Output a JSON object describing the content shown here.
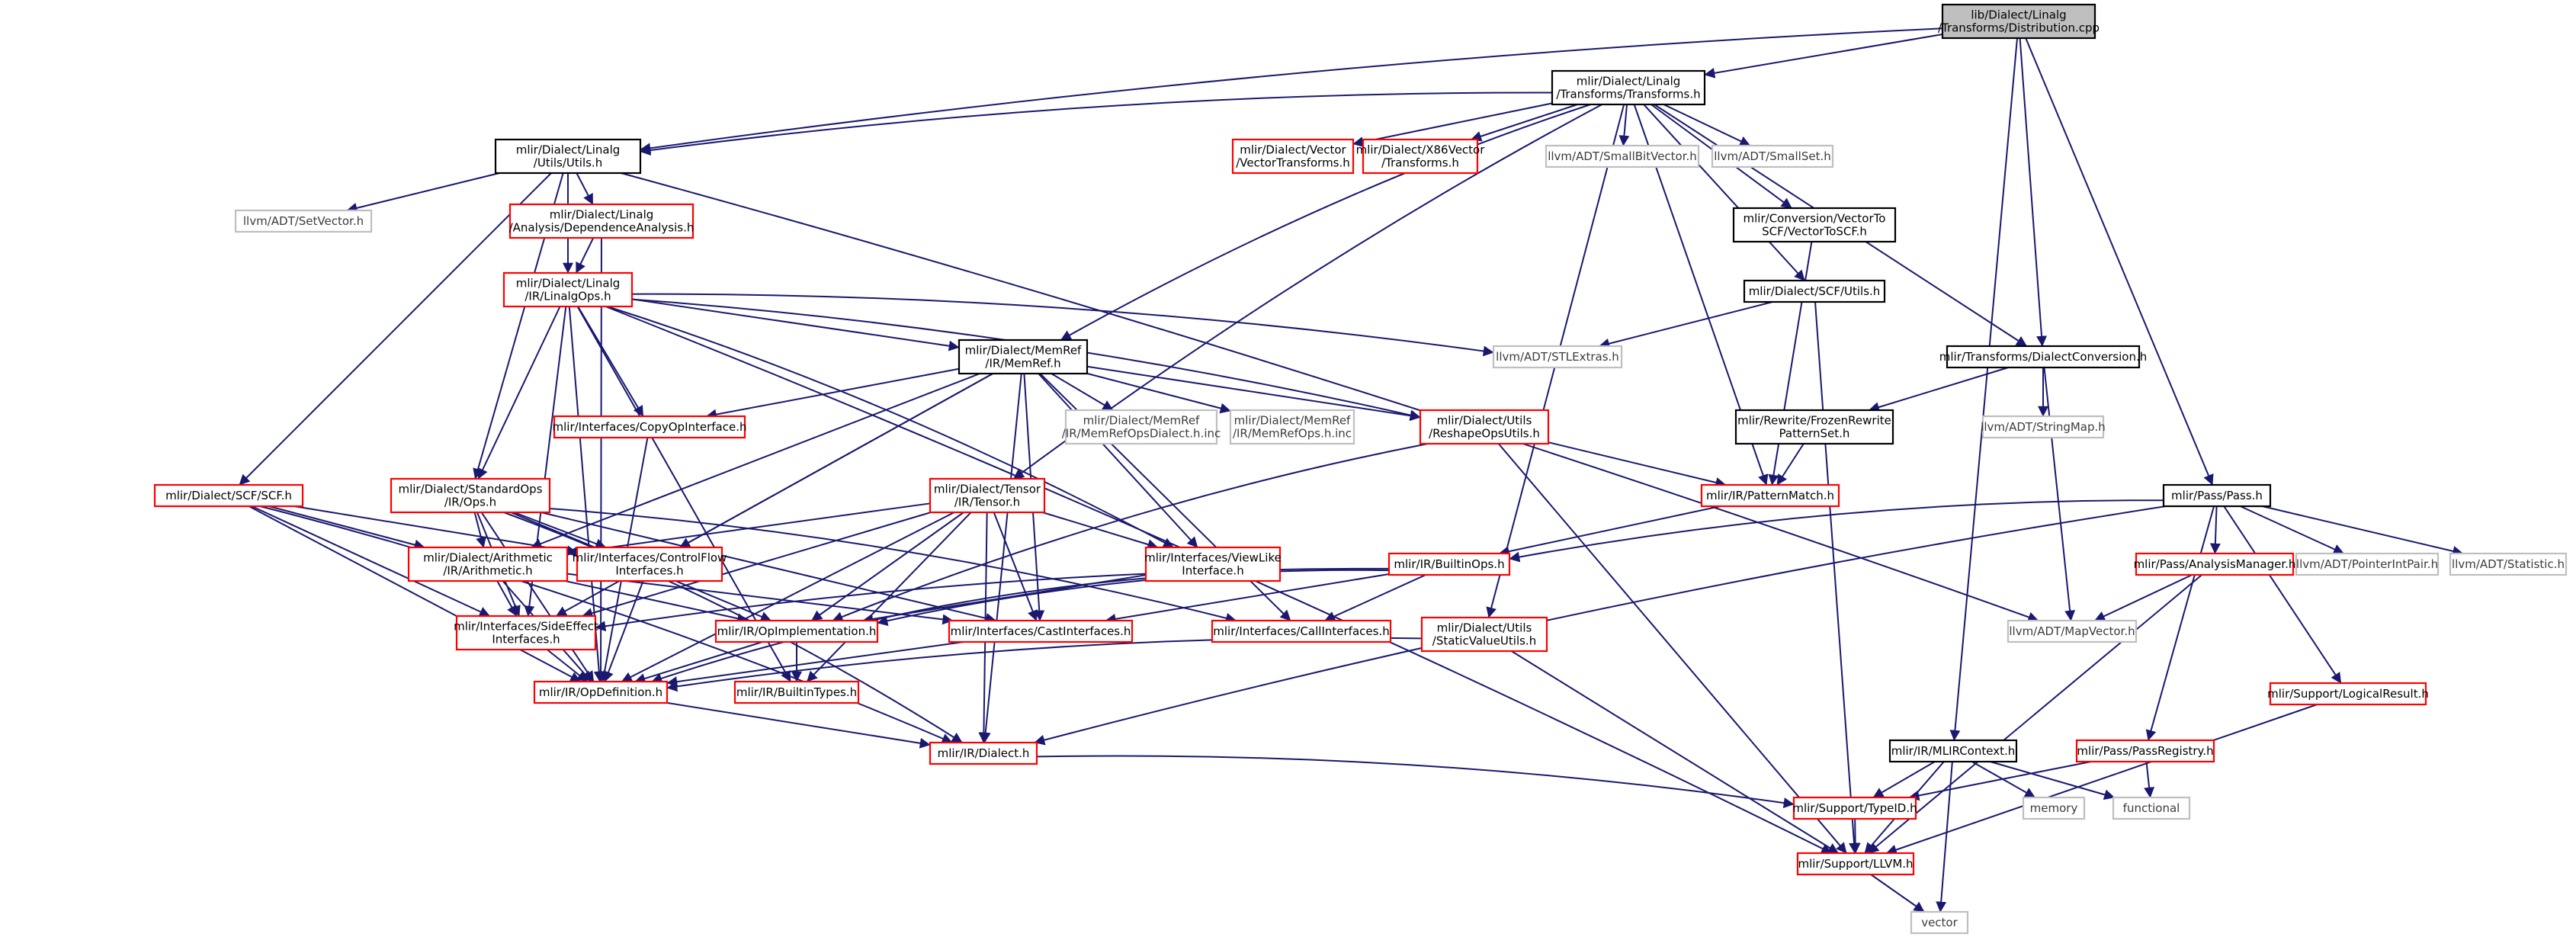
{
  "graph": {
    "colors": {
      "edge": "#191970",
      "node_fill": "#ffffff",
      "root_fill": "#bfbfbf",
      "documented_border": "#000000",
      "undocumented_border": "#ff0000",
      "external_border": "#bfbfbf",
      "text": "#000000",
      "external_text": "#3c3c3c"
    },
    "nodes": [
      {
        "id": "dist",
        "lines": [
          "lib/Dialect/Linalg",
          "/Transforms/Distribution.cpp"
        ],
        "style": "root"
      },
      {
        "id": "transforms",
        "lines": [
          "mlir/Dialect/Linalg",
          "/Transforms/Transforms.h"
        ],
        "style": "documented"
      },
      {
        "id": "linalg_utils",
        "lines": [
          "mlir/Dialect/Linalg",
          "/Utils/Utils.h"
        ],
        "style": "documented"
      },
      {
        "id": "vector_transforms",
        "lines": [
          "mlir/Dialect/Vector",
          "/VectorTransforms.h"
        ],
        "style": "undocumented"
      },
      {
        "id": "x86vector",
        "lines": [
          "mlir/Dialect/X86Vector",
          "/Transforms.h"
        ],
        "style": "undocumented"
      },
      {
        "id": "smallbitvector",
        "lines": [
          "llvm/ADT/SmallBitVector.h"
        ],
        "style": "external"
      },
      {
        "id": "smallset",
        "lines": [
          "llvm/ADT/SmallSet.h"
        ],
        "style": "external"
      },
      {
        "id": "vectortoscf",
        "lines": [
          "mlir/Conversion/VectorTo",
          "SCF/VectorToSCF.h"
        ],
        "style": "documented"
      },
      {
        "id": "setvector",
        "lines": [
          "llvm/ADT/SetVector.h"
        ],
        "style": "external"
      },
      {
        "id": "dependence",
        "lines": [
          "mlir/Dialect/Linalg",
          "/Analysis/DependenceAnalysis.h"
        ],
        "style": "undocumented"
      },
      {
        "id": "linalgops",
        "lines": [
          "mlir/Dialect/Linalg",
          "/IR/LinalgOps.h"
        ],
        "style": "undocumented"
      },
      {
        "id": "scf_utils",
        "lines": [
          "mlir/Dialect/SCF/Utils.h"
        ],
        "style": "documented"
      },
      {
        "id": "stlextras",
        "lines": [
          "llvm/ADT/STLExtras.h"
        ],
        "style": "external"
      },
      {
        "id": "memref",
        "lines": [
          "mlir/Dialect/MemRef",
          "/IR/MemRef.h"
        ],
        "style": "documented"
      },
      {
        "id": "dialectconversion",
        "lines": [
          "mlir/Transforms/DialectConversion.h"
        ],
        "style": "documented"
      },
      {
        "id": "memrefopsdialect",
        "lines": [
          "mlir/Dialect/MemRef",
          "/IR/MemRefOpsDialect.h.inc"
        ],
        "style": "external"
      },
      {
        "id": "memrefops",
        "lines": [
          "mlir/Dialect/MemRef",
          "/IR/MemRefOps.h.inc"
        ],
        "style": "external"
      },
      {
        "id": "reshapeops",
        "lines": [
          "mlir/Dialect/Utils",
          "/ReshapeOpsUtils.h"
        ],
        "style": "undocumented"
      },
      {
        "id": "frozenrewrite",
        "lines": [
          "mlir/Rewrite/FrozenRewrite",
          "PatternSet.h"
        ],
        "style": "documented"
      },
      {
        "id": "stringmap",
        "lines": [
          "llvm/ADT/StringMap.h"
        ],
        "style": "external"
      },
      {
        "id": "copyopinterface",
        "lines": [
          "mlir/Interfaces/CopyOpInterface.h"
        ],
        "style": "undocumented"
      },
      {
        "id": "scf",
        "lines": [
          "mlir/Dialect/SCF/SCF.h"
        ],
        "style": "undocumented"
      },
      {
        "id": "standardops",
        "lines": [
          "mlir/Dialect/StandardOps",
          "/IR/Ops.h"
        ],
        "style": "undocumented"
      },
      {
        "id": "tensor",
        "lines": [
          "mlir/Dialect/Tensor",
          "/IR/Tensor.h"
        ],
        "style": "undocumented"
      },
      {
        "id": "patternmatch",
        "lines": [
          "mlir/IR/PatternMatch.h"
        ],
        "style": "undocumented"
      },
      {
        "id": "pass",
        "lines": [
          "mlir/Pass/Pass.h"
        ],
        "style": "documented"
      },
      {
        "id": "arithmetic",
        "lines": [
          "mlir/Dialect/Arithmetic",
          "/IR/Arithmetic.h"
        ],
        "style": "undocumented"
      },
      {
        "id": "controlflow",
        "lines": [
          "mlir/Interfaces/ControlFlow",
          "Interfaces.h"
        ],
        "style": "undocumented"
      },
      {
        "id": "viewlike",
        "lines": [
          "mlir/Interfaces/ViewLike",
          "Interface.h"
        ],
        "style": "undocumented"
      },
      {
        "id": "builtinops",
        "lines": [
          "mlir/IR/BuiltinOps.h"
        ],
        "style": "undocumented"
      },
      {
        "id": "analysismanager",
        "lines": [
          "mlir/Pass/AnalysisManager.h"
        ],
        "style": "undocumented"
      },
      {
        "id": "pointerintpair",
        "lines": [
          "llvm/ADT/PointerIntPair.h"
        ],
        "style": "external"
      },
      {
        "id": "statistic",
        "lines": [
          "llvm/ADT/Statistic.h"
        ],
        "style": "external"
      },
      {
        "id": "sideeffect",
        "lines": [
          "mlir/Interfaces/SideEffect",
          "Interfaces.h"
        ],
        "style": "undocumented"
      },
      {
        "id": "opimplementation",
        "lines": [
          "mlir/IR/OpImplementation.h"
        ],
        "style": "undocumented"
      },
      {
        "id": "castinterfaces",
        "lines": [
          "mlir/Interfaces/CastInterfaces.h"
        ],
        "style": "undocumented"
      },
      {
        "id": "callinterfaces",
        "lines": [
          "mlir/Interfaces/CallInterfaces.h"
        ],
        "style": "undocumented"
      },
      {
        "id": "staticvalue",
        "lines": [
          "mlir/Dialect/Utils",
          "/StaticValueUtils.h"
        ],
        "style": "undocumented"
      },
      {
        "id": "mapvector",
        "lines": [
          "llvm/ADT/MapVector.h"
        ],
        "style": "external"
      },
      {
        "id": "opdefinition",
        "lines": [
          "mlir/IR/OpDefinition.h"
        ],
        "style": "undocumented"
      },
      {
        "id": "builtintypes",
        "lines": [
          "mlir/IR/BuiltinTypes.h"
        ],
        "style": "undocumented"
      },
      {
        "id": "logicalresult",
        "lines": [
          "mlir/Support/LogicalResult.h"
        ],
        "style": "undocumented"
      },
      {
        "id": "dialect",
        "lines": [
          "mlir/IR/Dialect.h"
        ],
        "style": "undocumented"
      },
      {
        "id": "mlircontext",
        "lines": [
          "mlir/IR/MLIRContext.h"
        ],
        "style": "documented"
      },
      {
        "id": "passregistry",
        "lines": [
          "mlir/Pass/PassRegistry.h"
        ],
        "style": "undocumented"
      },
      {
        "id": "memory",
        "lines": [
          "memory"
        ],
        "style": "external"
      },
      {
        "id": "functional",
        "lines": [
          "functional"
        ],
        "style": "external"
      },
      {
        "id": "typeid",
        "lines": [
          "mlir/Support/TypeID.h"
        ],
        "style": "undocumented"
      },
      {
        "id": "llvm",
        "lines": [
          "mlir/Support/LLVM.h"
        ],
        "style": "undocumented"
      },
      {
        "id": "vector",
        "lines": [
          "vector"
        ],
        "style": "external"
      }
    ],
    "edges": [
      [
        "dist",
        "transforms"
      ],
      [
        "dist",
        "linalg_utils"
      ],
      [
        "dist",
        "mlircontext"
      ],
      [
        "dist",
        "dialectconversion"
      ],
      [
        "dist",
        "pass"
      ],
      [
        "transforms",
        "linalg_utils"
      ],
      [
        "transforms",
        "vector_transforms"
      ],
      [
        "transforms",
        "x86vector"
      ],
      [
        "transforms",
        "smallbitvector"
      ],
      [
        "transforms",
        "smallset"
      ],
      [
        "transforms",
        "vectortoscf"
      ],
      [
        "transforms",
        "scf_utils"
      ],
      [
        "transforms",
        "dialectconversion"
      ],
      [
        "transforms",
        "memref"
      ],
      [
        "transforms",
        "tensor"
      ],
      [
        "transforms",
        "patternmatch"
      ],
      [
        "transforms",
        "staticvalue"
      ],
      [
        "linalg_utils",
        "setvector"
      ],
      [
        "linalg_utils",
        "dependence"
      ],
      [
        "linalg_utils",
        "linalgops"
      ],
      [
        "linalg_utils",
        "scf"
      ],
      [
        "linalg_utils",
        "standardops"
      ],
      [
        "linalg_utils",
        "mapvector"
      ],
      [
        "dependence",
        "linalgops"
      ],
      [
        "dependence",
        "opdefinition"
      ],
      [
        "linalgops",
        "stlextras"
      ],
      [
        "linalgops",
        "memref"
      ],
      [
        "linalgops",
        "copyopinterface"
      ],
      [
        "linalgops",
        "standardops"
      ],
      [
        "linalgops",
        "reshapeops"
      ],
      [
        "linalgops",
        "viewlike"
      ],
      [
        "linalgops",
        "sideeffect"
      ],
      [
        "linalgops",
        "opdefinition"
      ],
      [
        "linalgops",
        "builtintypes"
      ],
      [
        "linalgops",
        "llvm"
      ],
      [
        "vectortoscf",
        "patternmatch"
      ],
      [
        "scf_utils",
        "stlextras"
      ],
      [
        "scf_utils",
        "llvm"
      ],
      [
        "dialectconversion",
        "frozenrewrite"
      ],
      [
        "dialectconversion",
        "stringmap"
      ],
      [
        "dialectconversion",
        "mapvector"
      ],
      [
        "frozenrewrite",
        "patternmatch"
      ],
      [
        "memref",
        "memrefopsdialect"
      ],
      [
        "memref",
        "memrefops"
      ],
      [
        "memref",
        "reshapeops"
      ],
      [
        "memref",
        "copyopinterface"
      ],
      [
        "memref",
        "arithmetic"
      ],
      [
        "memref",
        "controlflow"
      ],
      [
        "memref",
        "viewlike"
      ],
      [
        "memref",
        "sideeffect"
      ],
      [
        "memref",
        "castinterfaces"
      ],
      [
        "memref",
        "callinterfaces"
      ],
      [
        "memref",
        "dialect"
      ],
      [
        "reshapeops",
        "patternmatch"
      ],
      [
        "reshapeops",
        "opimplementation"
      ],
      [
        "reshapeops",
        "llvm"
      ],
      [
        "copyopinterface",
        "opdefinition"
      ],
      [
        "scf",
        "arithmetic"
      ],
      [
        "scf",
        "controlflow"
      ],
      [
        "scf",
        "sideeffect"
      ],
      [
        "scf",
        "opdefinition"
      ],
      [
        "scf",
        "dialect"
      ],
      [
        "standardops",
        "arithmetic"
      ],
      [
        "standardops",
        "controlflow"
      ],
      [
        "standardops",
        "sideeffect"
      ],
      [
        "standardops",
        "opimplementation"
      ],
      [
        "standardops",
        "castinterfaces"
      ],
      [
        "standardops",
        "callinterfaces"
      ],
      [
        "standardops",
        "opdefinition"
      ],
      [
        "standardops",
        "dialect"
      ],
      [
        "tensor",
        "arithmetic"
      ],
      [
        "tensor",
        "viewlike"
      ],
      [
        "tensor",
        "sideeffect"
      ],
      [
        "tensor",
        "opimplementation"
      ],
      [
        "tensor",
        "castinterfaces"
      ],
      [
        "tensor",
        "builtintypes"
      ],
      [
        "tensor",
        "opdefinition"
      ],
      [
        "tensor",
        "dialect"
      ],
      [
        "patternmatch",
        "builtinops"
      ],
      [
        "pass",
        "builtinops"
      ],
      [
        "pass",
        "analysismanager"
      ],
      [
        "pass",
        "pointerintpair"
      ],
      [
        "pass",
        "statistic"
      ],
      [
        "pass",
        "passregistry"
      ],
      [
        "pass",
        "logicalresult"
      ],
      [
        "pass",
        "dialect"
      ],
      [
        "arithmetic",
        "sideeffect"
      ],
      [
        "arithmetic",
        "opimplementation"
      ],
      [
        "arithmetic",
        "castinterfaces"
      ],
      [
        "arithmetic",
        "opdefinition"
      ],
      [
        "controlflow",
        "opdefinition"
      ],
      [
        "viewlike",
        "opdefinition"
      ],
      [
        "viewlike",
        "opimplementation"
      ],
      [
        "builtinops",
        "sideeffect"
      ],
      [
        "builtinops",
        "castinterfaces"
      ],
      [
        "builtinops",
        "callinterfaces"
      ],
      [
        "builtinops",
        "opimplementation"
      ],
      [
        "analysismanager",
        "mapvector"
      ],
      [
        "analysismanager",
        "llvm"
      ],
      [
        "sideeffect",
        "opdefinition"
      ],
      [
        "opimplementation",
        "opdefinition"
      ],
      [
        "opimplementation",
        "builtintypes"
      ],
      [
        "castinterfaces",
        "opdefinition"
      ],
      [
        "staticvalue",
        "opdefinition"
      ],
      [
        "staticvalue",
        "llvm"
      ],
      [
        "opdefinition",
        "dialect"
      ],
      [
        "logicalresult",
        "llvm"
      ],
      [
        "dialect",
        "typeid"
      ],
      [
        "mlircontext",
        "typeid"
      ],
      [
        "mlircontext",
        "memory"
      ],
      [
        "mlircontext",
        "functional"
      ],
      [
        "mlircontext",
        "llvm"
      ],
      [
        "mlircontext",
        "vector"
      ],
      [
        "passregistry",
        "typeid"
      ],
      [
        "passregistry",
        "functional"
      ],
      [
        "typeid",
        "llvm"
      ],
      [
        "llvm",
        "vector"
      ]
    ]
  }
}
